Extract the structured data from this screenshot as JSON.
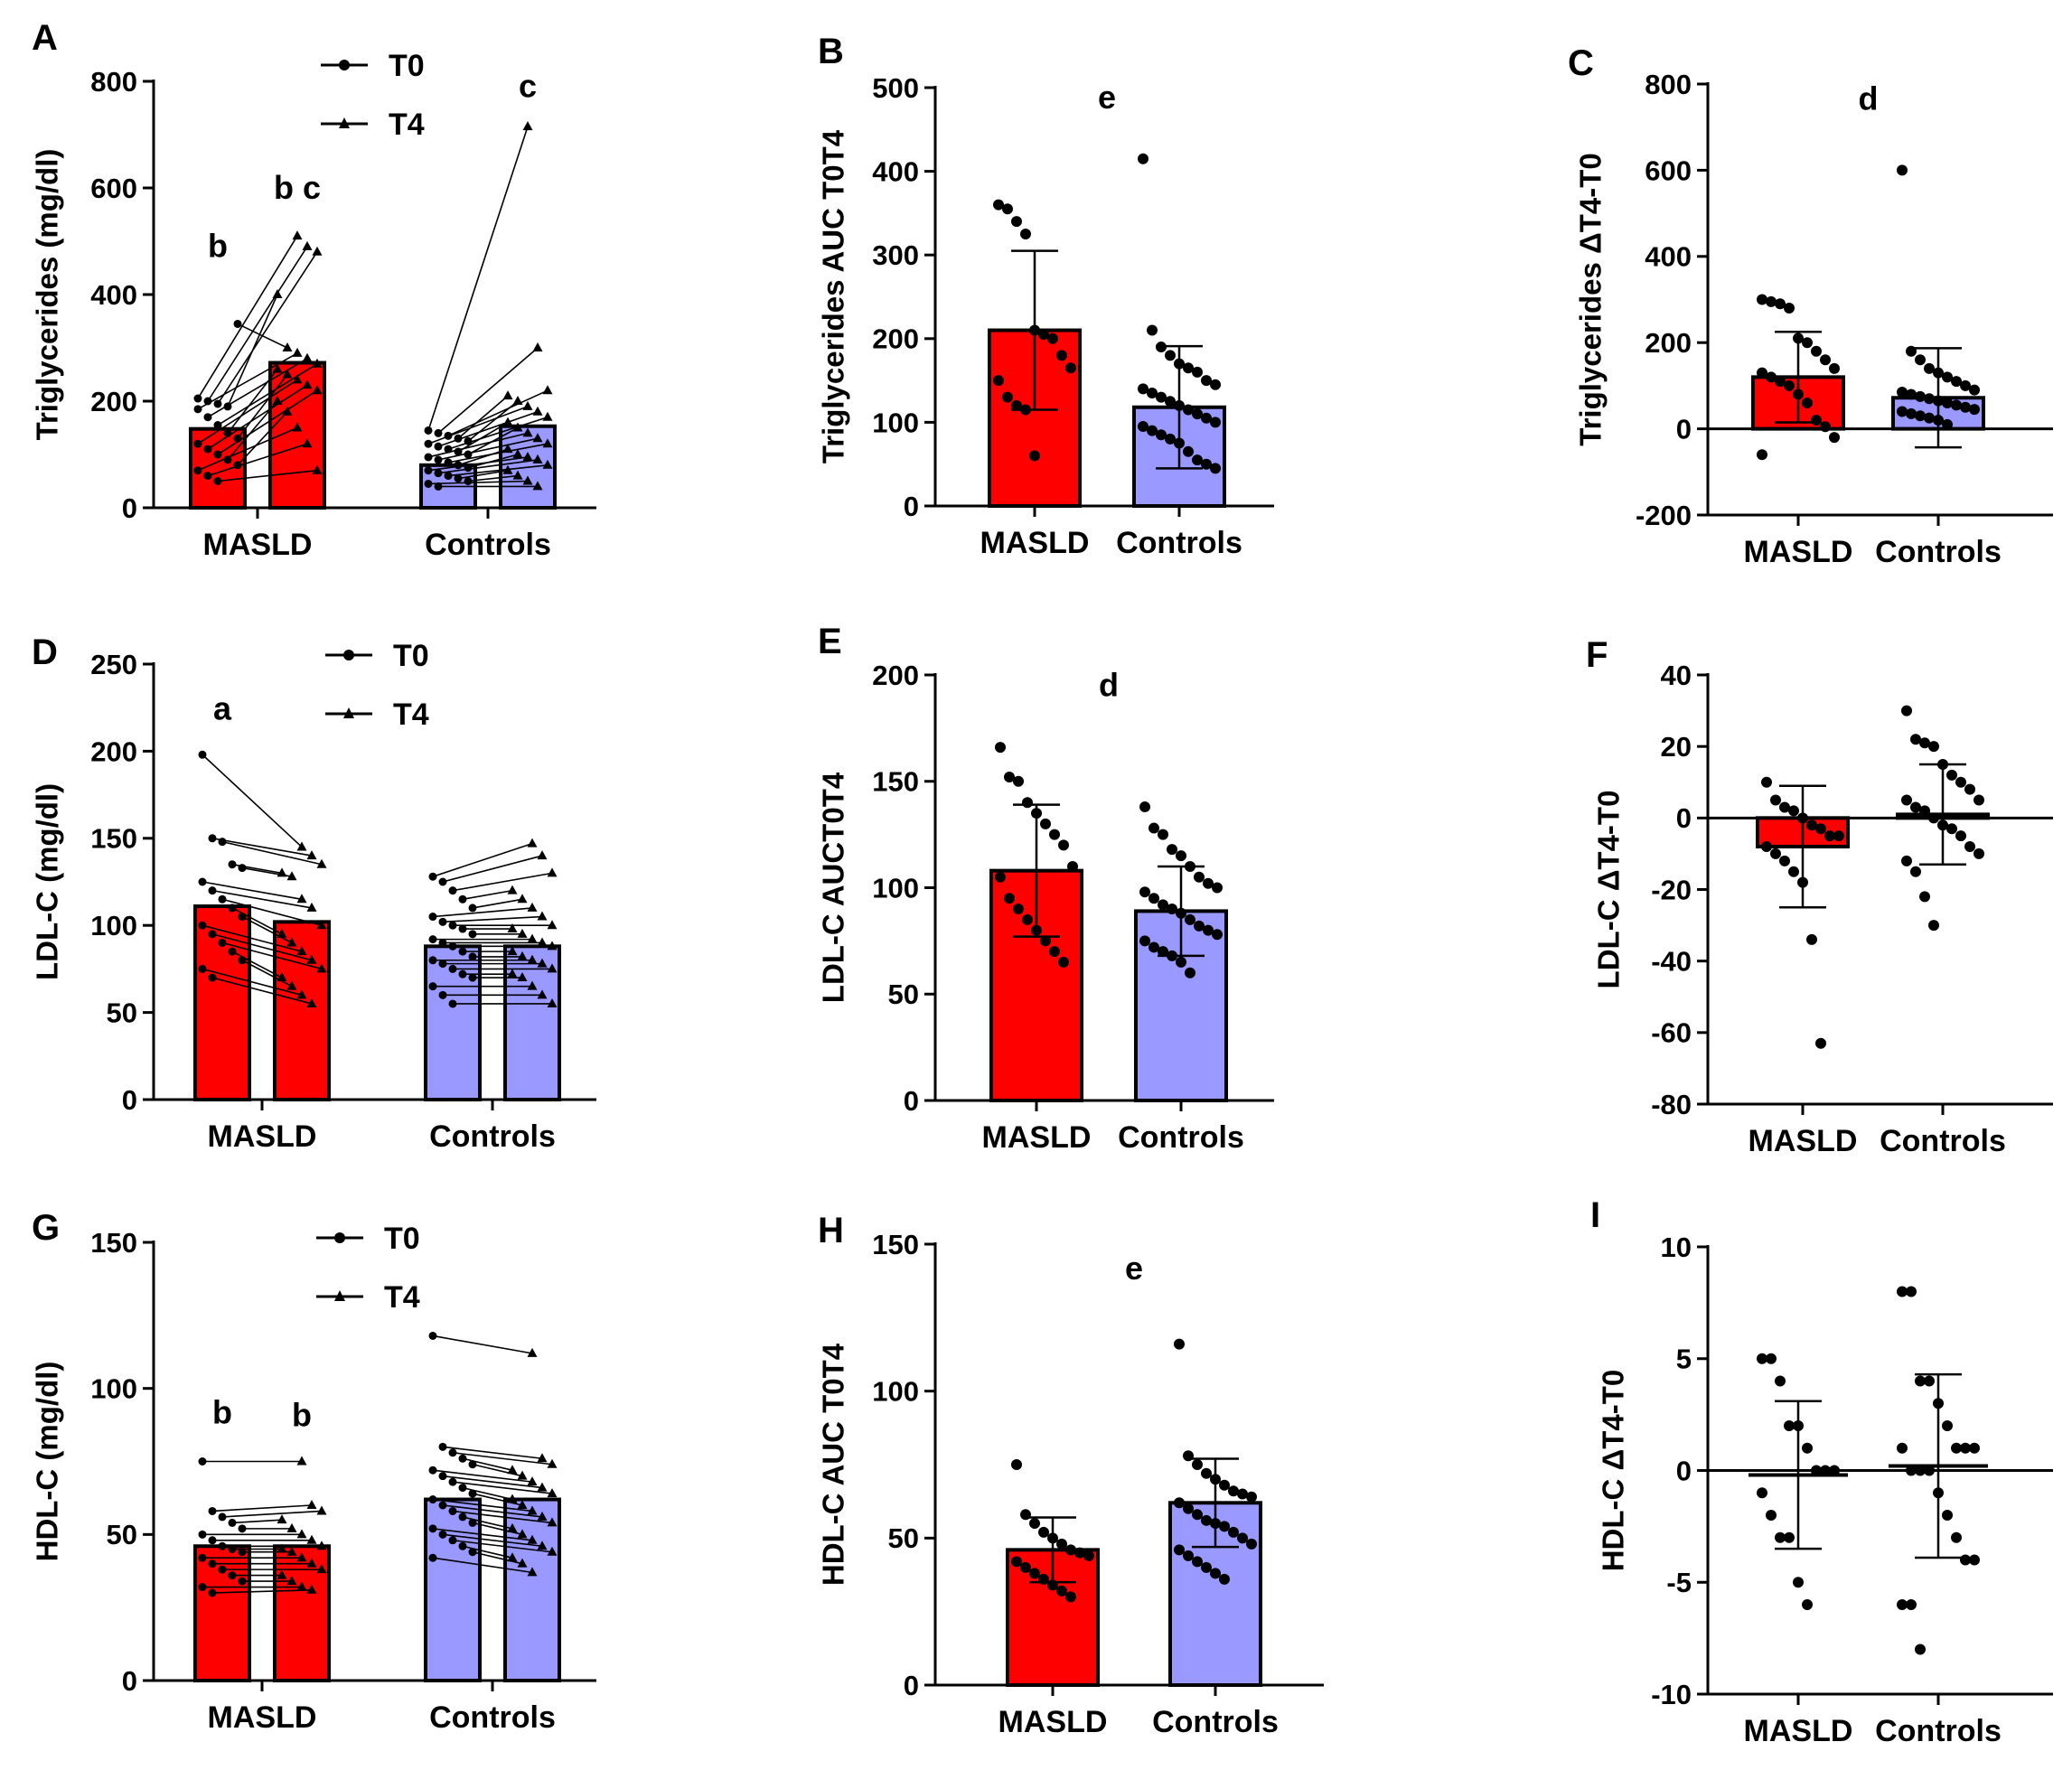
{
  "colors": {
    "masld": "#ff0000",
    "controls": "#9999ff",
    "ink": "#000000"
  },
  "chart_data": [
    {
      "id": "A",
      "type": "bar",
      "paired": true,
      "label": "A",
      "ylabel": "Triglycerides (mg/dl)",
      "ylim": [
        0,
        800
      ],
      "yticks": [
        0,
        200,
        400,
        600,
        800
      ],
      "categories": [
        "MASLD",
        "Controls"
      ],
      "legend": {
        "entries": [
          "T0",
          "T4"
        ],
        "position": "top"
      },
      "series": [
        {
          "name": "T0",
          "values": [
            148,
            80
          ]
        },
        {
          "name": "T4",
          "values": [
            272,
            153
          ]
        }
      ],
      "paired_points": [
        {
          "group": "MASLD",
          "t0": [
            205,
            200,
            195,
            190,
            345,
            185,
            170,
            155,
            140,
            130,
            120,
            110,
            100,
            90,
            80,
            70,
            60,
            50
          ],
          "t4": [
            510,
            490,
            480,
            400,
            300,
            290,
            280,
            270,
            260,
            250,
            240,
            230,
            220,
            200,
            180,
            150,
            120,
            70
          ]
        },
        {
          "group": "Controls",
          "t0": [
            145,
            140,
            135,
            130,
            125,
            120,
            115,
            110,
            105,
            100,
            95,
            90,
            85,
            80,
            75,
            70,
            65,
            60,
            55,
            50,
            45,
            40
          ],
          "t4": [
            715,
            300,
            220,
            210,
            200,
            190,
            180,
            170,
            160,
            150,
            140,
            130,
            120,
            110,
            100,
            95,
            90,
            80,
            70,
            60,
            50,
            40
          ]
        }
      ],
      "annotations": [
        {
          "text": "b",
          "group": "MASLD",
          "bar": 0,
          "y": 470
        },
        {
          "text": "b c",
          "group": "MASLD",
          "bar": 1,
          "y": 580
        },
        {
          "text": "c",
          "group": "Controls",
          "bar": 1,
          "y": 770
        }
      ]
    },
    {
      "id": "B",
      "type": "bar",
      "label": "B",
      "ylabel": "Triglycerides AUC T0T4",
      "ylim": [
        0,
        500
      ],
      "yticks": [
        0,
        100,
        200,
        300,
        400,
        500
      ],
      "categories": [
        "MASLD",
        "Controls"
      ],
      "values": [
        210,
        118
      ],
      "sd": [
        95,
        73
      ],
      "points": [
        [
          360,
          355,
          340,
          325,
          210,
          205,
          200,
          180,
          165,
          150,
          130,
          120,
          115,
          60
        ],
        [
          415,
          210,
          190,
          180,
          170,
          165,
          160,
          150,
          145,
          140,
          135,
          130,
          125,
          120,
          115,
          110,
          105,
          100,
          95,
          90,
          85,
          80,
          75,
          65,
          55,
          50,
          45
        ]
      ],
      "annotations": [
        {
          "text": "e",
          "y": 475
        }
      ]
    },
    {
      "id": "C",
      "type": "bar",
      "label": "C",
      "ylabel": "Triglycerides ΔT4-T0",
      "ylim": [
        -200,
        800
      ],
      "yticks": [
        -200,
        0,
        200,
        400,
        600,
        800
      ],
      "categories": [
        "MASLD",
        "Controls"
      ],
      "values": [
        120,
        72
      ],
      "sd": [
        105,
        115
      ],
      "points": [
        [
          300,
          295,
          290,
          280,
          210,
          200,
          180,
          160,
          140,
          130,
          120,
          110,
          100,
          80,
          60,
          20,
          5,
          -20,
          -60
        ],
        [
          600,
          180,
          160,
          140,
          130,
          120,
          110,
          100,
          90,
          85,
          80,
          75,
          70,
          65,
          60,
          55,
          50,
          45,
          40,
          35,
          30,
          25,
          20,
          10
        ]
      ],
      "annotations": [
        {
          "text": "d",
          "y": 740
        }
      ]
    },
    {
      "id": "D",
      "type": "bar",
      "paired": true,
      "label": "D",
      "ylabel": "LDL-C (mg/dl)",
      "ylim": [
        0,
        250
      ],
      "yticks": [
        0,
        50,
        100,
        150,
        200,
        250
      ],
      "categories": [
        "MASLD",
        "Controls"
      ],
      "legend": {
        "entries": [
          "T0",
          "T4"
        ],
        "position": "top"
      },
      "series": [
        {
          "name": "T0",
          "values": [
            111,
            88
          ]
        },
        {
          "name": "T4",
          "values": [
            102,
            88
          ]
        }
      ],
      "paired_points": [
        {
          "group": "MASLD",
          "t0": [
            198,
            150,
            148,
            135,
            133,
            125,
            120,
            115,
            110,
            105,
            100,
            95,
            90,
            85,
            80,
            75,
            70
          ],
          "t4": [
            145,
            140,
            135,
            130,
            128,
            115,
            110,
            100,
            95,
            90,
            85,
            80,
            75,
            70,
            65,
            60,
            55
          ]
        },
        {
          "group": "Controls",
          "t0": [
            128,
            125,
            120,
            115,
            110,
            105,
            102,
            100,
            98,
            95,
            92,
            90,
            88,
            85,
            82,
            80,
            78,
            75,
            72,
            70,
            65,
            60,
            55
          ],
          "t4": [
            147,
            140,
            130,
            120,
            115,
            110,
            105,
            100,
            98,
            95,
            92,
            90,
            88,
            85,
            82,
            80,
            78,
            75,
            72,
            70,
            65,
            60,
            55
          ]
        }
      ],
      "annotations": [
        {
          "text": "a",
          "group": "MASLD",
          "bar": 0,
          "y": 218
        }
      ]
    },
    {
      "id": "E",
      "type": "bar",
      "label": "E",
      "ylabel": "LDL-C AUCT0T4",
      "ylim": [
        0,
        200
      ],
      "yticks": [
        0,
        50,
        100,
        150,
        200
      ],
      "categories": [
        "MASLD",
        "Controls"
      ],
      "values": [
        108,
        89
      ],
      "sd": [
        31,
        21
      ],
      "points": [
        [
          166,
          152,
          150,
          140,
          135,
          130,
          125,
          120,
          110,
          105,
          95,
          90,
          85,
          80,
          75,
          70,
          65
        ],
        [
          138,
          128,
          125,
          118,
          115,
          110,
          105,
          102,
          100,
          98,
          95,
          92,
          90,
          88,
          85,
          82,
          80,
          78,
          75,
          72,
          70,
          68,
          65,
          60
        ]
      ],
      "annotations": [
        {
          "text": "d",
          "y": 190
        }
      ]
    },
    {
      "id": "F",
      "type": "bar",
      "label": "F",
      "ylabel": "LDL-C ΔT4-T0",
      "ylim": [
        -80,
        40
      ],
      "yticks": [
        -80,
        -60,
        -40,
        -20,
        0,
        20,
        40
      ],
      "categories": [
        "MASLD",
        "Controls"
      ],
      "values": [
        -8,
        1
      ],
      "sd": [
        17,
        14
      ],
      "points": [
        [
          10,
          5,
          3,
          2,
          0,
          -2,
          -3,
          -5,
          -5,
          -8,
          -10,
          -12,
          -15,
          -18,
          -34,
          -63
        ],
        [
          30,
          22,
          21,
          20,
          15,
          12,
          10,
          8,
          5,
          5,
          3,
          2,
          0,
          -2,
          -3,
          -5,
          -8,
          -10,
          -12,
          -15,
          -22,
          -30
        ]
      ],
      "annotations": []
    },
    {
      "id": "G",
      "type": "bar",
      "paired": true,
      "label": "G",
      "ylabel": "HDL-C (mg/dl)",
      "ylim": [
        0,
        150
      ],
      "yticks": [
        0,
        50,
        100,
        150
      ],
      "categories": [
        "MASLD",
        "Controls"
      ],
      "legend": {
        "entries": [
          "T0",
          "T4"
        ],
        "position": "top"
      },
      "series": [
        {
          "name": "T0",
          "values": [
            46,
            62
          ]
        },
        {
          "name": "T4",
          "values": [
            46,
            62
          ]
        }
      ],
      "paired_points": [
        {
          "group": "MASLD",
          "t0": [
            75,
            58,
            56,
            54,
            52,
            50,
            48,
            46,
            45,
            44,
            42,
            40,
            38,
            36,
            34,
            32,
            30
          ],
          "t4": [
            75,
            60,
            58,
            55,
            52,
            50,
            48,
            46,
            45,
            44,
            42,
            40,
            38,
            36,
            34,
            32,
            31
          ]
        },
        {
          "group": "Controls",
          "t0": [
            118,
            80,
            78,
            76,
            74,
            72,
            70,
            68,
            66,
            64,
            62,
            60,
            58,
            56,
            54,
            52,
            50,
            48,
            46,
            44,
            42
          ],
          "t4": [
            112,
            76,
            74,
            72,
            70,
            68,
            66,
            64,
            62,
            60,
            58,
            56,
            54,
            52,
            50,
            48,
            46,
            44,
            42,
            40,
            37
          ]
        }
      ],
      "annotations": [
        {
          "text": "b",
          "group": "MASLD",
          "bar": 0,
          "y": 88
        },
        {
          "text": "b",
          "group": "MASLD",
          "bar": 1,
          "y": 87
        }
      ]
    },
    {
      "id": "H",
      "type": "bar",
      "label": "H",
      "ylabel": "HDL-C AUC T0T4",
      "ylim": [
        0,
        150
      ],
      "yticks": [
        0,
        50,
        100,
        150
      ],
      "categories": [
        "MASLD",
        "Controls"
      ],
      "values": [
        46,
        62
      ],
      "sd": [
        11,
        15
      ],
      "points": [
        [
          75,
          58,
          55,
          52,
          50,
          48,
          46,
          45,
          44,
          42,
          40,
          38,
          36,
          34,
          32,
          30
        ],
        [
          116,
          78,
          75,
          72,
          70,
          68,
          66,
          65,
          64,
          62,
          60,
          58,
          56,
          55,
          54,
          52,
          50,
          48,
          46,
          44,
          42,
          40,
          38,
          36
        ]
      ],
      "annotations": [
        {
          "text": "e",
          "y": 138
        }
      ]
    },
    {
      "id": "I",
      "type": "scatter",
      "label": "I",
      "ylabel": "HDL-C ΔT4-T0",
      "ylim": [
        -10,
        10
      ],
      "yticks": [
        -10,
        -5,
        0,
        5,
        10
      ],
      "categories": [
        "MASLD",
        "Controls"
      ],
      "values": [
        -0.2,
        0.2
      ],
      "sd": [
        3.3,
        4.1
      ],
      "points": [
        [
          5,
          5,
          4,
          2,
          2,
          1,
          0,
          0,
          0,
          -1,
          -2,
          -3,
          -3,
          -5,
          -6
        ],
        [
          8,
          8,
          4,
          4,
          3,
          2,
          1,
          1,
          1,
          1,
          0,
          0,
          0,
          -1,
          -2,
          -3,
          -4,
          -4,
          -6,
          -6,
          -8
        ]
      ],
      "annotations": []
    }
  ]
}
